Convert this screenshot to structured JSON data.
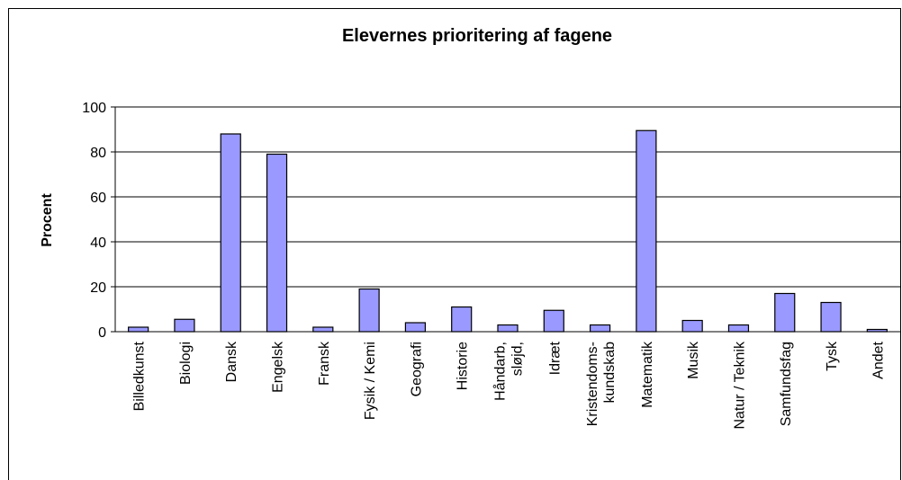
{
  "chart_data": {
    "type": "bar",
    "title": "Elevernes prioritering af fagene",
    "y_label": "Procent",
    "categories": [
      "Billedkunst",
      "Biologi",
      "Dansk",
      "Engelsk",
      "Fransk",
      "Fysik / Kemi",
      "Geografi",
      "Historie",
      "Håndarb,\nsløjd,",
      "Idræt",
      "Kristendoms-\nkundskab",
      "Matematik",
      "Musik",
      "Natur / Teknik",
      "Samfundsfag",
      "Tysk",
      "Andet"
    ],
    "values": [
      2,
      5.5,
      88,
      79,
      2,
      19,
      4,
      11,
      3,
      9.5,
      3,
      89.5,
      5,
      3,
      17,
      13,
      1
    ],
    "color": "#9999ff",
    "ylim": [
      0,
      100
    ],
    "yticks": [
      0,
      20,
      40,
      60,
      80,
      100
    ],
    "grid": true
  }
}
